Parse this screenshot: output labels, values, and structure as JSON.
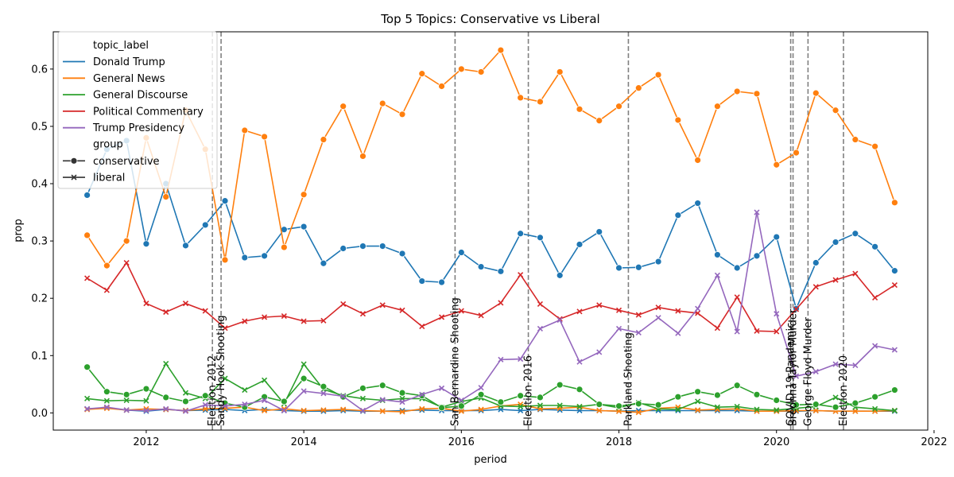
{
  "chart_data": {
    "type": "line",
    "title": "Top 5 Topics: Conservative vs Liberal",
    "xlabel": "period",
    "ylabel": "prop",
    "xlim": [
      2010.82,
      2021.92
    ],
    "ylim": [
      -0.03,
      0.665
    ],
    "xticks": [
      2012,
      2014,
      2016,
      2018,
      2020,
      2022
    ],
    "yticks": [
      0.0,
      0.1,
      0.2,
      0.3,
      0.4,
      0.5,
      0.6
    ],
    "ytick_labels": [
      "0.0",
      "0.1",
      "0.2",
      "0.3",
      "0.4",
      "0.5",
      "0.6"
    ],
    "grid": false,
    "legend": {
      "placement": "top-left",
      "hue_title": "topic_label",
      "style_title": "group",
      "style_entries": [
        {
          "label": "conservative",
          "marker": "circle"
        },
        {
          "label": "liberal",
          "marker": "x"
        }
      ]
    },
    "x": [
      2011.25,
      2011.5,
      2011.75,
      2012.0,
      2012.25,
      2012.5,
      2012.75,
      2013.0,
      2013.25,
      2013.5,
      2013.75,
      2014.0,
      2014.25,
      2014.5,
      2014.75,
      2015.0,
      2015.25,
      2015.5,
      2015.75,
      2016.0,
      2016.25,
      2016.5,
      2016.75,
      2017.0,
      2017.25,
      2017.5,
      2017.75,
      2018.0,
      2018.25,
      2018.5,
      2018.75,
      2019.0,
      2019.25,
      2019.5,
      2019.75,
      2020.0,
      2020.25,
      2020.5,
      2020.75,
      2021.0,
      2021.25,
      2021.5
    ],
    "series": [
      {
        "name": "Donald Trump",
        "color": "#1f77b4",
        "conservative": [
          0.38,
          0.46,
          0.475,
          0.295,
          0.4,
          0.292,
          0.328,
          0.37,
          0.271,
          0.274,
          0.32,
          0.325,
          0.261,
          0.287,
          0.291,
          0.291,
          0.278,
          0.23,
          0.228,
          0.28,
          0.255,
          0.247,
          0.313,
          0.306,
          0.24,
          0.294,
          0.316,
          0.253,
          0.254,
          0.264,
          0.345,
          0.366,
          0.276,
          0.253,
          0.274,
          0.307,
          0.182,
          0.262,
          0.298,
          0.313,
          0.29,
          0.248
        ],
        "liberal": [
          0.007,
          0.009,
          0.005,
          0.003,
          0.006,
          0.004,
          0.005,
          0.006,
          0.004,
          0.006,
          0.004,
          0.003,
          0.003,
          0.004,
          0.003,
          0.003,
          0.004,
          0.005,
          0.004,
          0.004,
          0.004,
          0.006,
          0.004,
          0.006,
          0.005,
          0.004,
          0.004,
          0.003,
          0.004,
          0.004,
          0.004,
          0.004,
          0.004,
          0.004,
          0.003,
          0.003,
          0.003,
          0.004,
          0.003,
          0.003,
          0.003,
          0.003
        ]
      },
      {
        "name": "General News",
        "color": "#ff7f0e",
        "conservative": [
          0.31,
          0.257,
          0.3,
          0.48,
          0.377,
          0.528,
          0.46,
          0.267,
          0.493,
          0.482,
          0.289,
          0.381,
          0.477,
          0.535,
          0.448,
          0.54,
          0.521,
          0.592,
          0.57,
          0.6,
          0.595,
          0.633,
          0.55,
          0.543,
          0.595,
          0.53,
          0.51,
          0.535,
          0.567,
          0.59,
          0.511,
          0.441,
          0.535,
          0.561,
          0.557,
          0.433,
          0.454,
          0.558,
          0.528,
          0.477,
          0.465,
          0.367
        ],
        "liberal": [
          0.006,
          0.008,
          0.005,
          0.007,
          0.006,
          0.004,
          0.007,
          0.008,
          0.01,
          0.004,
          0.007,
          0.004,
          0.005,
          0.006,
          0.004,
          0.003,
          0.002,
          0.007,
          0.008,
          0.003,
          0.006,
          0.012,
          0.015,
          0.007,
          0.008,
          0.01,
          0.004,
          0.003,
          0.001,
          0.008,
          0.01,
          0.005,
          0.006,
          0.007,
          0.003,
          0.003,
          0.004,
          0.004,
          0.003,
          0.003,
          0.003,
          0.004
        ]
      },
      {
        "name": "General Discourse",
        "color": "#2ca02c",
        "conservative": [
          0.08,
          0.037,
          0.032,
          0.042,
          0.027,
          0.02,
          0.03,
          0.017,
          0.01,
          0.028,
          0.02,
          0.06,
          0.046,
          0.028,
          0.043,
          0.048,
          0.035,
          0.03,
          0.009,
          0.012,
          0.032,
          0.019,
          0.03,
          0.027,
          0.049,
          0.041,
          0.015,
          0.012,
          0.016,
          0.014,
          0.028,
          0.037,
          0.031,
          0.048,
          0.032,
          0.022,
          0.014,
          0.015,
          0.01,
          0.017,
          0.028,
          0.04
        ],
        "liberal": [
          0.025,
          0.021,
          0.022,
          0.021,
          0.086,
          0.035,
          0.025,
          0.06,
          0.04,
          0.057,
          0.016,
          0.085,
          0.041,
          0.03,
          0.025,
          0.022,
          0.025,
          0.025,
          0.01,
          0.02,
          0.026,
          0.012,
          0.011,
          0.013,
          0.013,
          0.011,
          0.015,
          0.009,
          0.018,
          0.007,
          0.006,
          0.02,
          0.01,
          0.011,
          0.006,
          0.005,
          0.008,
          0.011,
          0.027,
          0.01,
          0.007,
          0.004
        ]
      },
      {
        "name": "Political Commentary",
        "color": "#d62728",
        "conservative": [],
        "liberal": [
          0.235,
          0.214,
          0.262,
          0.191,
          0.176,
          0.191,
          0.178,
          0.148,
          0.16,
          0.167,
          0.169,
          0.16,
          0.161,
          0.19,
          0.173,
          0.188,
          0.179,
          0.151,
          0.167,
          0.178,
          0.17,
          0.192,
          0.241,
          0.19,
          0.164,
          0.177,
          0.188,
          0.179,
          0.171,
          0.184,
          0.178,
          0.174,
          0.148,
          0.202,
          0.143,
          0.142,
          0.181,
          0.22,
          0.232,
          0.243,
          0.201,
          0.223
        ]
      },
      {
        "name": "Trump Presidency",
        "color": "#9467bd",
        "conservative": [],
        "liberal": [
          0.007,
          0.01,
          0.005,
          0.004,
          0.007,
          0.003,
          0.014,
          0.012,
          0.015,
          0.022,
          0.004,
          0.038,
          0.034,
          0.029,
          0.004,
          0.023,
          0.019,
          0.032,
          0.043,
          0.022,
          0.044,
          0.093,
          0.094,
          0.147,
          0.162,
          0.089,
          0.106,
          0.147,
          0.14,
          0.166,
          0.139,
          0.182,
          0.24,
          0.142,
          0.35,
          0.173,
          0.064,
          0.072,
          0.085,
          0.083,
          0.117,
          0.11
        ]
      }
    ],
    "events": [
      {
        "label": "Election 2012",
        "x": 2012.84
      },
      {
        "label": "Sandy Hook Shooting",
        "x": 2012.95
      },
      {
        "label": "San Bernardino Shooting",
        "x": 2015.92
      },
      {
        "label": "Election 2016",
        "x": 2016.85
      },
      {
        "label": "Parkland Shooting",
        "x": 2018.12
      },
      {
        "label": "COVID-19 Pandemic",
        "x": 2020.18
      },
      {
        "label": "Breonna Taylor Murder",
        "x": 2020.21
      },
      {
        "label": "George Floyd Murder",
        "x": 2020.4
      },
      {
        "label": "Election 2020",
        "x": 2020.85
      }
    ]
  }
}
